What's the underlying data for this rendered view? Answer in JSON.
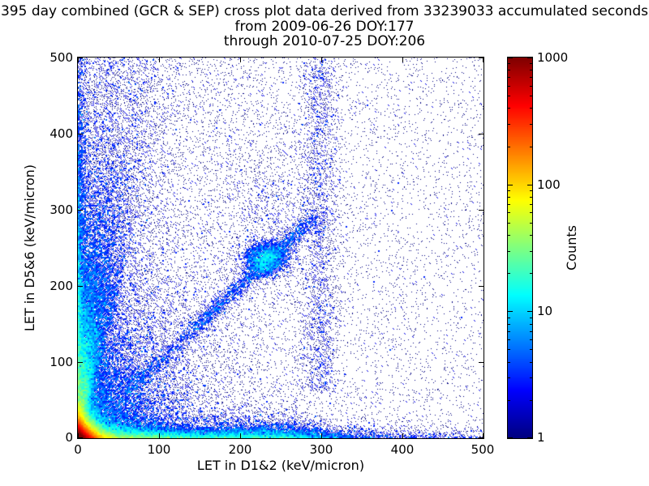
{
  "chart_data": {
    "type": "heatmap",
    "description": "2D histogram cross plot of LET coincidences, jet colormap on a logarithmic counts scale, white background, no grid, no legend",
    "title_lines": [
      "395 day combined (GCR & SEP) cross plot data derived from 33239033 accumulated seconds",
      "from 2009-06-26 DOY:177",
      "through 2010-07-25 DOY:206"
    ],
    "xlabel": "LET in D1&2 (keV/micron)",
    "ylabel": "LET in D5&6 (keV/micron)",
    "xlim": [
      0,
      500
    ],
    "ylim": [
      0,
      500
    ],
    "xticks": [
      0,
      100,
      200,
      300,
      400,
      500
    ],
    "yticks": [
      0,
      100,
      200,
      300,
      400,
      500
    ],
    "grid": false,
    "legend": null,
    "colorbar": {
      "label": "Counts",
      "scale": "log",
      "vmin": 1,
      "vmax": 1000,
      "ticks": [
        1,
        10,
        100,
        1000
      ],
      "colormap": "jet"
    },
    "density_features": [
      {
        "name": "origin-hot-core",
        "type": "indep",
        "n": 40000,
        "x": {
          "dist": "exp",
          "scale": 8
        },
        "y": {
          "dist": "exp",
          "scale": 8
        }
      },
      {
        "name": "x-axis-band",
        "type": "indep",
        "n": 12000,
        "x": {
          "dist": "exp",
          "scale": 130
        },
        "y": {
          "dist": "exp",
          "scale": 6
        }
      },
      {
        "name": "x-axis-band-bright-segment",
        "type": "indep",
        "n": 2500,
        "x": {
          "dist": "normal",
          "mu": 232,
          "sigma": 45
        },
        "y": {
          "dist": "exp",
          "scale": 9
        }
      },
      {
        "name": "y-axis-band",
        "type": "indep",
        "n": 9000,
        "x": {
          "dist": "exp",
          "scale": 6
        },
        "y": {
          "dist": "exp",
          "scale": 160
        }
      },
      {
        "name": "lower-left-fan",
        "type": "indep",
        "n": 16000,
        "x": {
          "dist": "exp",
          "scale": 55
        },
        "y": {
          "dist": "exp",
          "scale": 110
        }
      },
      {
        "name": "left-half-haze",
        "type": "indep",
        "n": 6000,
        "x": {
          "dist": "exp",
          "scale": 150
        },
        "y": {
          "dist": "uniform",
          "min": 0,
          "max": 500
        }
      },
      {
        "name": "uniform-background",
        "type": "indep",
        "n": 6500,
        "x": {
          "dist": "uniform",
          "min": 0,
          "max": 500
        },
        "y": {
          "dist": "uniform",
          "min": 0,
          "max": 500
        }
      },
      {
        "name": "streak-1",
        "type": "ray",
        "n": 2200,
        "slope": 14,
        "sigma0": 2,
        "spread": 0.012,
        "y": {
          "dist": "exp",
          "scale": 260
        }
      },
      {
        "name": "streak-2",
        "type": "ray",
        "n": 2200,
        "slope": 9.5,
        "sigma0": 2,
        "spread": 0.012,
        "y": {
          "dist": "exp",
          "scale": 260
        }
      },
      {
        "name": "streak-3",
        "type": "ray",
        "n": 2200,
        "slope": 7,
        "sigma0": 2,
        "spread": 0.012,
        "y": {
          "dist": "exp",
          "scale": 240
        }
      },
      {
        "name": "streak-4",
        "type": "ray",
        "n": 1800,
        "slope": 5.5,
        "sigma0": 2,
        "spread": 0.014,
        "y": {
          "dist": "exp",
          "scale": 230
        }
      },
      {
        "name": "streak-5",
        "type": "ray",
        "n": 1500,
        "slope": 4.3,
        "sigma0": 2,
        "spread": 0.016,
        "y": {
          "dist": "exp",
          "scale": 220
        }
      },
      {
        "name": "diagonal-band",
        "type": "diag",
        "n": 2200,
        "t": {
          "dist": "uniform",
          "min": 140,
          "max": 290
        },
        "sigma": 6
      },
      {
        "name": "diagonal-band-faint",
        "type": "diag",
        "n": 600,
        "t": {
          "dist": "uniform",
          "min": 60,
          "max": 140
        },
        "sigma": 5
      },
      {
        "name": "diagonal-cluster",
        "type": "blob",
        "n": 2400,
        "cx": 232,
        "cy": 235,
        "sx": 14,
        "sy": 12
      },
      {
        "name": "mid-haze",
        "type": "blob",
        "n": 700,
        "cx": 245,
        "cy": 300,
        "sx": 35,
        "sy": 45
      },
      {
        "name": "vertical-band-300",
        "type": "vline",
        "n": 2300,
        "x0": 298,
        "sigma": 12,
        "y": {
          "dist": "uniform",
          "min": 60,
          "max": 500
        }
      }
    ]
  }
}
